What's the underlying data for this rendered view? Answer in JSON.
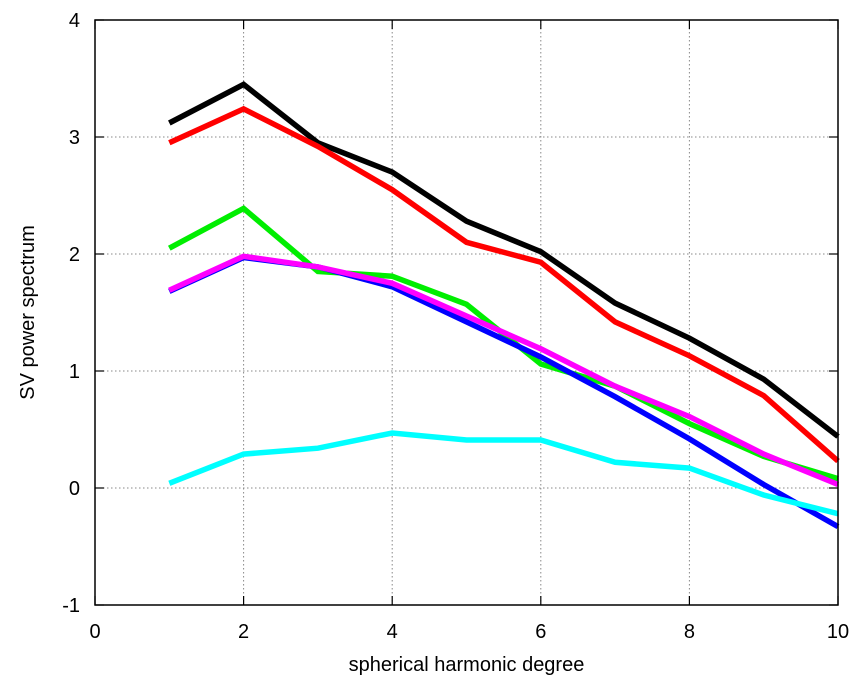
{
  "chart_data": {
    "type": "line",
    "xlabel": "spherical harmonic degree",
    "ylabel": "SV power spectrum",
    "xlim": [
      0,
      10
    ],
    "ylim": [
      -1,
      4
    ],
    "grid": true,
    "legend": "none",
    "xticks": [
      "0",
      "2",
      "4",
      "6",
      "8",
      "10"
    ],
    "yticks": [
      "-1",
      "0",
      "1",
      "2",
      "3",
      "4"
    ],
    "x": [
      1,
      2,
      3,
      4,
      5,
      6,
      7,
      8,
      9,
      10
    ],
    "series": [
      {
        "color": "#000000",
        "values": [
          3.12,
          3.45,
          2.95,
          2.7,
          2.28,
          2.02,
          1.58,
          1.28,
          0.93,
          0.44
        ]
      },
      {
        "color": "#ff0000",
        "values": [
          2.95,
          3.24,
          2.92,
          2.55,
          2.1,
          1.93,
          1.42,
          1.13,
          0.79,
          0.23
        ]
      },
      {
        "color": "#00ee00",
        "values": [
          2.05,
          2.39,
          1.85,
          1.81,
          1.57,
          1.06,
          0.87,
          0.55,
          0.27,
          0.08
        ]
      },
      {
        "color": "#0000ff",
        "values": [
          1.68,
          1.97,
          1.89,
          1.72,
          1.42,
          1.12,
          0.78,
          0.42,
          0.03,
          -0.33
        ]
      },
      {
        "color": "#ff00ff",
        "values": [
          1.69,
          1.98,
          1.89,
          1.75,
          1.47,
          1.19,
          0.87,
          0.61,
          0.29,
          0.03
        ]
      },
      {
        "color": "#00ffff",
        "values": [
          0.04,
          0.29,
          0.34,
          0.47,
          0.41,
          0.41,
          0.22,
          0.17,
          -0.06,
          -0.22
        ]
      }
    ]
  }
}
